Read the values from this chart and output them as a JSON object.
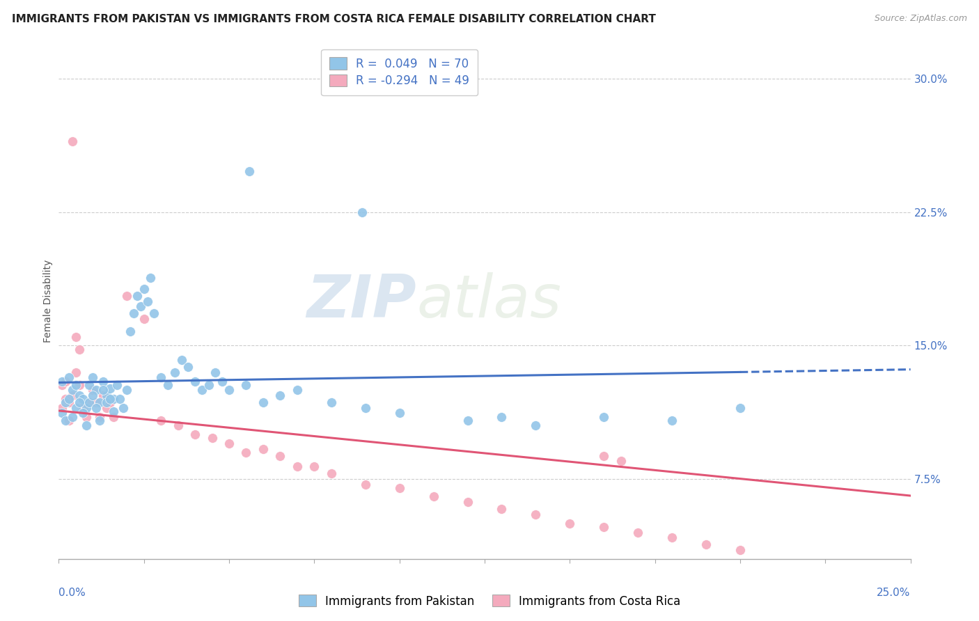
{
  "title": "IMMIGRANTS FROM PAKISTAN VS IMMIGRANTS FROM COSTA RICA FEMALE DISABILITY CORRELATION CHART",
  "source": "Source: ZipAtlas.com",
  "ylabel": "Female Disability",
  "y_ticks": [
    0.075,
    0.15,
    0.225,
    0.3
  ],
  "y_tick_labels": [
    "7.5%",
    "15.0%",
    "22.5%",
    "30.0%"
  ],
  "x_min": 0.0,
  "x_max": 0.25,
  "y_min": 0.03,
  "y_max": 0.32,
  "pakistan_color": "#92C5E8",
  "costa_rica_color": "#F4AABD",
  "pakistan_line_color": "#4472C4",
  "costa_rica_line_color": "#E05575",
  "pakistan_R": 0.049,
  "pakistan_N": 70,
  "costa_rica_R": -0.294,
  "costa_rica_N": 49,
  "legend_label_pakistan": "Immigrants from Pakistan",
  "legend_label_costa_rica": "Immigrants from Costa Rica",
  "watermark_zip": "ZIP",
  "watermark_atlas": "atlas",
  "title_fontsize": 11,
  "source_fontsize": 9,
  "tick_fontsize": 11,
  "legend_fontsize": 12,
  "pakistan_scatter_x": [
    0.001,
    0.002,
    0.003,
    0.004,
    0.005,
    0.006,
    0.007,
    0.008,
    0.009,
    0.01,
    0.011,
    0.012,
    0.013,
    0.014,
    0.015,
    0.016,
    0.001,
    0.002,
    0.003,
    0.004,
    0.005,
    0.006,
    0.007,
    0.008,
    0.009,
    0.01,
    0.011,
    0.012,
    0.013,
    0.014,
    0.015,
    0.016,
    0.017,
    0.018,
    0.019,
    0.02,
    0.021,
    0.022,
    0.023,
    0.024,
    0.025,
    0.026,
    0.027,
    0.028,
    0.03,
    0.032,
    0.034,
    0.036,
    0.038,
    0.04,
    0.042,
    0.044,
    0.046,
    0.048,
    0.05,
    0.055,
    0.06,
    0.065,
    0.07,
    0.08,
    0.09,
    0.1,
    0.12,
    0.14,
    0.16,
    0.18,
    0.089,
    0.056,
    0.13,
    0.2
  ],
  "pakistan_scatter_y": [
    0.13,
    0.118,
    0.132,
    0.125,
    0.128,
    0.122,
    0.12,
    0.115,
    0.128,
    0.132,
    0.125,
    0.118,
    0.13,
    0.122,
    0.126,
    0.12,
    0.112,
    0.108,
    0.12,
    0.11,
    0.115,
    0.118,
    0.112,
    0.105,
    0.118,
    0.122,
    0.115,
    0.108,
    0.125,
    0.118,
    0.12,
    0.113,
    0.128,
    0.12,
    0.115,
    0.125,
    0.158,
    0.168,
    0.178,
    0.172,
    0.182,
    0.175,
    0.188,
    0.168,
    0.132,
    0.128,
    0.135,
    0.142,
    0.138,
    0.13,
    0.125,
    0.128,
    0.135,
    0.13,
    0.125,
    0.128,
    0.118,
    0.122,
    0.125,
    0.118,
    0.115,
    0.112,
    0.108,
    0.105,
    0.11,
    0.108,
    0.225,
    0.248,
    0.11,
    0.115
  ],
  "costa_rica_scatter_x": [
    0.001,
    0.002,
    0.003,
    0.004,
    0.005,
    0.006,
    0.007,
    0.008,
    0.009,
    0.01,
    0.011,
    0.012,
    0.013,
    0.014,
    0.015,
    0.016,
    0.001,
    0.002,
    0.003,
    0.004,
    0.02,
    0.025,
    0.03,
    0.035,
    0.04,
    0.045,
    0.05,
    0.055,
    0.06,
    0.065,
    0.07,
    0.075,
    0.08,
    0.09,
    0.1,
    0.11,
    0.12,
    0.13,
    0.14,
    0.15,
    0.16,
    0.17,
    0.18,
    0.19,
    0.2,
    0.165,
    0.005,
    0.006,
    0.16
  ],
  "costa_rica_scatter_y": [
    0.128,
    0.13,
    0.118,
    0.122,
    0.135,
    0.128,
    0.115,
    0.11,
    0.118,
    0.125,
    0.118,
    0.11,
    0.122,
    0.115,
    0.118,
    0.11,
    0.115,
    0.12,
    0.108,
    0.265,
    0.178,
    0.165,
    0.108,
    0.105,
    0.1,
    0.098,
    0.095,
    0.09,
    0.092,
    0.088,
    0.082,
    0.082,
    0.078,
    0.072,
    0.07,
    0.065,
    0.062,
    0.058,
    0.055,
    0.05,
    0.048,
    0.045,
    0.042,
    0.038,
    0.035,
    0.085,
    0.155,
    0.148,
    0.088
  ]
}
